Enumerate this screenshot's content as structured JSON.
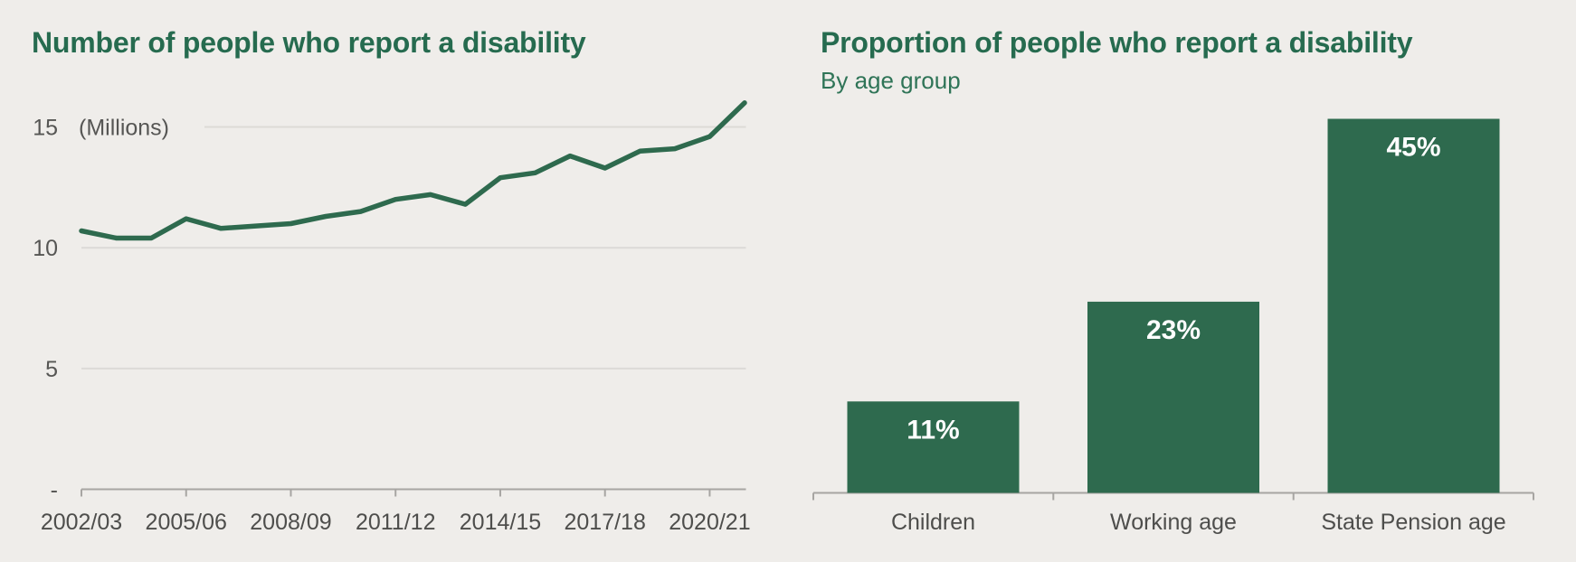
{
  "page": {
    "background_color": "#efedea"
  },
  "colors": {
    "title_green": "#266b4f",
    "subtitle_green": "#2f7457",
    "series_green": "#2e6a4e",
    "grid_gray": "#dcdad7",
    "axis_gray": "#a7a5a2",
    "tick_label_gray": "#565654",
    "category_label_gray": "#4e4e4c",
    "bar_value_white": "#ffffff"
  },
  "chart_data": [
    {
      "type": "line",
      "title": "Number of people who report a disability",
      "unit_label": "(Millions)",
      "x": [
        "2002/03",
        "2003/04",
        "2004/05",
        "2005/06",
        "2006/07",
        "2007/08",
        "2008/09",
        "2009/10",
        "2010/11",
        "2011/12",
        "2012/13",
        "2013/14",
        "2014/15",
        "2015/16",
        "2016/17",
        "2017/18",
        "2018/19",
        "2019/20",
        "2020/21",
        "2021/22"
      ],
      "values": [
        10.7,
        10.4,
        10.4,
        11.2,
        10.8,
        10.9,
        11.0,
        11.3,
        11.5,
        12.0,
        12.2,
        11.8,
        12.9,
        13.1,
        13.8,
        13.3,
        14.0,
        14.1,
        14.6,
        16.0
      ],
      "x_tick_labels": [
        "2002/03",
        "2005/06",
        "2008/09",
        "2011/12",
        "2014/15",
        "2017/18",
        "2020/21"
      ],
      "y_ticks": [
        {
          "label": "-",
          "value": 0
        },
        {
          "label": "5",
          "value": 5
        },
        {
          "label": "10",
          "value": 10
        },
        {
          "label": "15",
          "value": 15
        }
      ],
      "ylim": [
        0,
        16.5
      ],
      "grid": "horizontal",
      "legend": "none"
    },
    {
      "type": "bar",
      "title": "Proportion of people who report a disability",
      "subtitle": "By age group",
      "categories": [
        "Children",
        "Working age",
        "State Pension age"
      ],
      "values": [
        11,
        23,
        45
      ],
      "value_labels": [
        "11%",
        "23%",
        "45%"
      ],
      "ylim": [
        0,
        47
      ],
      "grid": "off",
      "legend": "none"
    }
  ]
}
